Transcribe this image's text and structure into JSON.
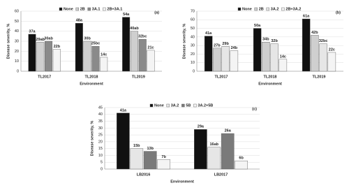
{
  "chart_data": [
    {
      "type": "bar",
      "annotation": "(a)",
      "ylabel": "Disease severity, %",
      "xlabel": "Environment",
      "categories": [
        "TL2017",
        "TL2018",
        "TL2019"
      ],
      "series": [
        {
          "name": "None",
          "color": "#111111",
          "values": [
            37,
            48,
            54
          ],
          "value_labels": [
            "37a",
            "48a",
            "54a"
          ]
        },
        {
          "name": "2B",
          "color": "#cfcfcf",
          "values": [
            29,
            30,
            40
          ],
          "value_labels": [
            "29ab",
            "30b",
            "40ab"
          ]
        },
        {
          "name": "3A.1",
          "color": "#8a8a8a",
          "values": [
            30,
            25,
            32
          ],
          "value_labels": [
            "30ab",
            "25bc",
            "32bc"
          ]
        },
        {
          "name": "2B+3A.1",
          "color": "#f4f4f4",
          "values": [
            22,
            14,
            21
          ],
          "value_labels": [
            "22b",
            "14c",
            "21c"
          ]
        }
      ],
      "ylim": [
        0,
        60
      ],
      "yticks": [
        0,
        10,
        20,
        30,
        40,
        50,
        60
      ],
      "legend": "top"
    },
    {
      "type": "bar",
      "annotation": "(b)",
      "ylabel": "Disease severity, %",
      "xlabel": "Environment",
      "categories": [
        "TL2017",
        "TL2018",
        "TL2019"
      ],
      "series": [
        {
          "name": "None",
          "color": "#111111",
          "values": [
            41,
            50,
            61
          ],
          "value_labels": [
            "41a",
            "50a",
            "61a"
          ]
        },
        {
          "name": "2B",
          "color": "#cfcfcf",
          "values": [
            27,
            34,
            42
          ],
          "value_labels": [
            "27b",
            "34b",
            "42b"
          ]
        },
        {
          "name": "3A.2",
          "color": "#e6e6e6",
          "values": [
            29,
            32,
            32
          ],
          "value_labels": [
            "29b",
            "32b",
            "32bc"
          ]
        },
        {
          "name": "2B+3A.2",
          "color": "#f4f4f4",
          "values": [
            24,
            14,
            22
          ],
          "value_labels": [
            "24b",
            "14c",
            "22c"
          ]
        }
      ],
      "ylim": [
        0,
        70
      ],
      "yticks": [
        0,
        10,
        20,
        30,
        40,
        50,
        60,
        70
      ],
      "legend": "top"
    },
    {
      "type": "bar",
      "annotation": "(c)",
      "ylabel": "Disease severity, %",
      "xlabel": "Environment",
      "categories": [
        "LB2016",
        "LB2017"
      ],
      "series": [
        {
          "name": "None",
          "color": "#111111",
          "values": [
            41,
            29
          ],
          "value_labels": [
            "41a",
            "29a"
          ]
        },
        {
          "name": "3A.2",
          "color": "#e6e6e6",
          "values": [
            15,
            16
          ],
          "value_labels": [
            "15b",
            "16ab"
          ]
        },
        {
          "name": "5B",
          "color": "#7a7a7a",
          "values": [
            13,
            26
          ],
          "value_labels": [
            "13b",
            "26a"
          ]
        },
        {
          "name": "3A.2+5B",
          "color": "#f4f4f4",
          "values": [
            7,
            6
          ],
          "value_labels": [
            "7b",
            "6b"
          ]
        }
      ],
      "ylim": [
        0,
        45
      ],
      "yticks": [
        0,
        5,
        10,
        15,
        20,
        25,
        30,
        35,
        40,
        45
      ],
      "legend": "top"
    }
  ]
}
